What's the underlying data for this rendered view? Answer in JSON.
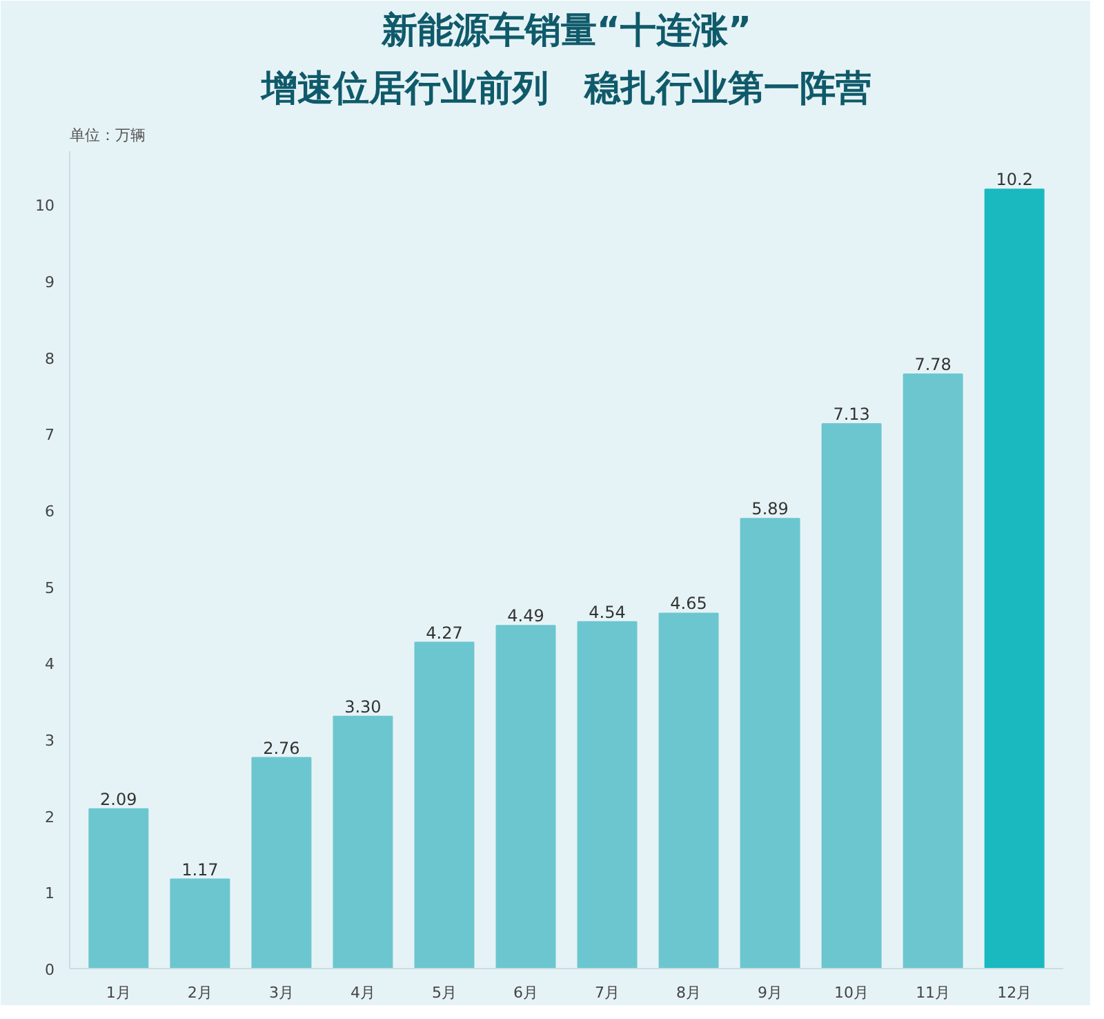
{
  "chart_data": {
    "type": "bar",
    "title": "新能源车销量“十连涨”",
    "subtitle": "增速位居行业前列　稳扎行业第一阵营",
    "ylabel": "单位：万辆",
    "categories": [
      "1月",
      "2月",
      "3月",
      "4月",
      "5月",
      "6月",
      "7月",
      "8月",
      "9月",
      "10月",
      "11月",
      "12月"
    ],
    "values": [
      2.09,
      1.17,
      2.76,
      3.3,
      4.27,
      4.49,
      4.54,
      4.65,
      5.89,
      7.13,
      7.78,
      10.2
    ],
    "value_labels": [
      "2.09",
      "1.17",
      "2.76",
      "3.30",
      "4.27",
      "4.49",
      "4.54",
      "4.65",
      "5.89",
      "7.13",
      "7.78",
      "10.2"
    ],
    "colors": [
      "#6cc6cf",
      "#6cc6cf",
      "#6cc6cf",
      "#6cc6cf",
      "#6cc6cf",
      "#6cc6cf",
      "#6cc6cf",
      "#6cc6cf",
      "#6cc6cf",
      "#6cc6cf",
      "#6cc6cf",
      "#1ab9c0"
    ],
    "ylim": [
      0,
      10.7
    ],
    "yticks": [
      0,
      1,
      2,
      3,
      4,
      5,
      6,
      7,
      8,
      9,
      10
    ],
    "grid": false
  }
}
